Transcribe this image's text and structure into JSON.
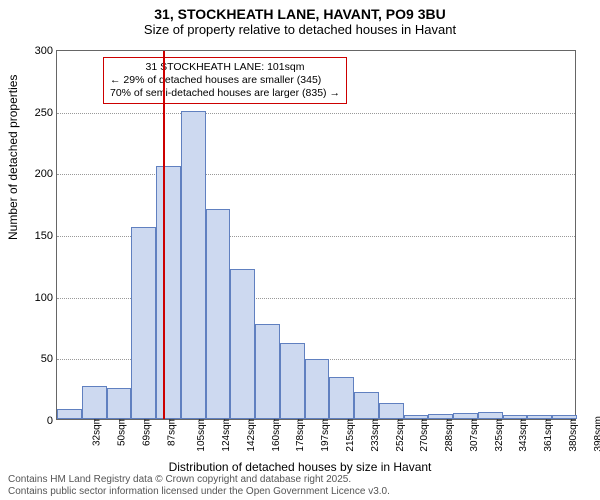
{
  "title_main": "31, STOCKHEATH LANE, HAVANT, PO9 3BU",
  "title_sub": "Size of property relative to detached houses in Havant",
  "y_axis_label": "Number of detached properties",
  "x_axis_label": "Distribution of detached houses by size in Havant",
  "footer_line1": "Contains HM Land Registry data © Crown copyright and database right 2025.",
  "footer_line2": "Contains public sector information licensed under the Open Government Licence v3.0.",
  "callout_line1": "31 STOCKHEATH LANE: 101sqm",
  "callout_line2": "← 29% of detached houses are smaller (345)",
  "callout_line3": "70% of semi-detached houses are larger (835) →",
  "chart": {
    "type": "histogram",
    "ylim": [
      0,
      300
    ],
    "ytick_step": 50,
    "x_categories": [
      "32sqm",
      "50sqm",
      "69sqm",
      "87sqm",
      "105sqm",
      "124sqm",
      "142sqm",
      "160sqm",
      "178sqm",
      "197sqm",
      "215sqm",
      "233sqm",
      "252sqm",
      "270sqm",
      "288sqm",
      "307sqm",
      "325sqm",
      "343sqm",
      "361sqm",
      "380sqm",
      "398sqm"
    ],
    "values": [
      8,
      27,
      25,
      156,
      205,
      250,
      170,
      122,
      77,
      62,
      49,
      34,
      22,
      13,
      3,
      4,
      5,
      6,
      3,
      3,
      3
    ],
    "bar_fill": "#cdd9f0",
    "bar_border": "#6080c0",
    "background_color": "#ffffff",
    "grid_color": "#999999",
    "axis_color": "#666666",
    "ref_line_color": "#cc0000",
    "ref_line_position_sqm": 101,
    "callout_border": "#cc0000",
    "title_fontsize": 14,
    "subtitle_fontsize": 13,
    "axis_label_fontsize": 12,
    "tick_fontsize": 11,
    "footer_color": "#555555"
  }
}
